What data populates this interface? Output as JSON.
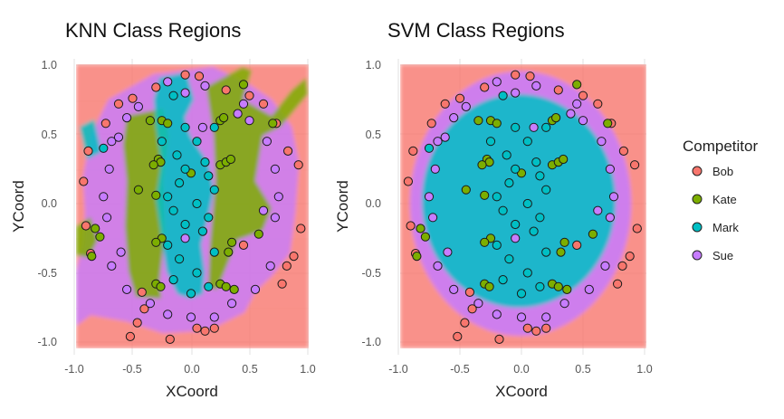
{
  "legend": {
    "title": "Competitor",
    "items": [
      {
        "label": "Bob",
        "color": "#F8766D"
      },
      {
        "label": "Kate",
        "color": "#7CAE00"
      },
      {
        "label": "Mark",
        "color": "#00BFC4"
      },
      {
        "label": "Sue",
        "color": "#C77CFF"
      }
    ]
  },
  "chart_data": [
    {
      "type": "scatter",
      "title": "KNN Class Regions",
      "xlabel": "XCoord",
      "ylabel": "YCoord",
      "xlim": [
        -1.0,
        1.0
      ],
      "ylim": [
        -1.0,
        1.0
      ],
      "xticks": [
        "-1.0",
        "-0.5",
        "0.0",
        "0.5",
        "1.0"
      ],
      "yticks": [
        "-1.0",
        "-0.5",
        "0.0",
        "0.5",
        "1.0"
      ],
      "background": "decision regions",
      "grid": true,
      "regions": [
        {
          "class": "Bob",
          "note": "outer corners"
        },
        {
          "class": "Sue",
          "note": "ring band"
        },
        {
          "class": "Kate",
          "note": "vertical bands"
        },
        {
          "class": "Mark",
          "note": "central column"
        }
      ]
    },
    {
      "type": "scatter",
      "title": "SVM Class Regions",
      "xlabel": "XCoord",
      "ylabel": "YCoord",
      "xlim": [
        -1.0,
        1.0
      ],
      "ylim": [
        -1.0,
        1.0
      ],
      "xticks": [
        "-1.0",
        "-0.5",
        "0.0",
        "0.5",
        "1.0"
      ],
      "yticks": [
        "-1.0",
        "-0.5",
        "0.0",
        "0.5",
        "1.0"
      ],
      "background": "decision regions",
      "grid": true,
      "regions": [
        {
          "class": "Bob",
          "note": "outside"
        },
        {
          "class": "Sue",
          "note": "ring"
        },
        {
          "class": "Mark",
          "note": "inner ellipse"
        }
      ]
    }
  ],
  "points": [
    {
      "x": -0.05,
      "y": 0.93,
      "c": "Bob"
    },
    {
      "x": 0.07,
      "y": 0.92,
      "c": "Bob"
    },
    {
      "x": -0.3,
      "y": 0.84,
      "c": "Bob"
    },
    {
      "x": 0.3,
      "y": 0.82,
      "c": "Bob"
    },
    {
      "x": -0.5,
      "y": 0.76,
      "c": "Bob"
    },
    {
      "x": 0.5,
      "y": 0.78,
      "c": "Bob"
    },
    {
      "x": -0.62,
      "y": 0.72,
      "c": "Bob"
    },
    {
      "x": 0.62,
      "y": 0.72,
      "c": "Bob"
    },
    {
      "x": -0.73,
      "y": 0.58,
      "c": "Bob"
    },
    {
      "x": 0.73,
      "y": 0.58,
      "c": "Bob"
    },
    {
      "x": -0.88,
      "y": 0.38,
      "c": "Bob"
    },
    {
      "x": 0.83,
      "y": 0.38,
      "c": "Bob"
    },
    {
      "x": 0.92,
      "y": 0.28,
      "c": "Bob"
    },
    {
      "x": -0.92,
      "y": 0.16,
      "c": "Bob"
    },
    {
      "x": -0.9,
      "y": -0.16,
      "c": "Bob"
    },
    {
      "x": 0.94,
      "y": -0.18,
      "c": "Bob"
    },
    {
      "x": -0.86,
      "y": -0.36,
      "c": "Bob"
    },
    {
      "x": 0.88,
      "y": -0.38,
      "c": "Bob"
    },
    {
      "x": 0.82,
      "y": -0.45,
      "c": "Bob"
    },
    {
      "x": -0.42,
      "y": -0.64,
      "c": "Bob"
    },
    {
      "x": 0.45,
      "y": -0.3,
      "c": "Bob"
    },
    {
      "x": 0.78,
      "y": -0.58,
      "c": "Bob"
    },
    {
      "x": -0.4,
      "y": -0.76,
      "c": "Bob"
    },
    {
      "x": -0.46,
      "y": -0.86,
      "c": "Bob"
    },
    {
      "x": 0.05,
      "y": -0.9,
      "c": "Bob"
    },
    {
      "x": 0.12,
      "y": -0.92,
      "c": "Bob"
    },
    {
      "x": -0.18,
      "y": -0.98,
      "c": "Bob"
    },
    {
      "x": 0.2,
      "y": -0.9,
      "c": "Bob"
    },
    {
      "x": -0.52,
      "y": -0.96,
      "c": "Bob"
    },
    {
      "x": 0.45,
      "y": 0.86,
      "c": "Kate"
    },
    {
      "x": -0.35,
      "y": 0.6,
      "c": "Kate"
    },
    {
      "x": -0.25,
      "y": 0.6,
      "c": "Kate"
    },
    {
      "x": -0.2,
      "y": 0.58,
      "c": "Kate"
    },
    {
      "x": 0.25,
      "y": 0.6,
      "c": "Kate"
    },
    {
      "x": 0.28,
      "y": 0.62,
      "c": "Kate"
    },
    {
      "x": -0.28,
      "y": 0.32,
      "c": "Kate"
    },
    {
      "x": -0.26,
      "y": 0.3,
      "c": "Kate"
    },
    {
      "x": -0.32,
      "y": 0.28,
      "c": "Kate"
    },
    {
      "x": 0.25,
      "y": 0.28,
      "c": "Kate"
    },
    {
      "x": 0.3,
      "y": 0.3,
      "c": "Kate"
    },
    {
      "x": 0.34,
      "y": 0.32,
      "c": "Kate"
    },
    {
      "x": 0.0,
      "y": 0.22,
      "c": "Kate"
    },
    {
      "x": -0.45,
      "y": 0.1,
      "c": "Kate"
    },
    {
      "x": -0.3,
      "y": 0.06,
      "c": "Kate"
    },
    {
      "x": -0.82,
      "y": -0.18,
      "c": "Kate"
    },
    {
      "x": -0.78,
      "y": -0.24,
      "c": "Kate"
    },
    {
      "x": -0.85,
      "y": -0.38,
      "c": "Kate"
    },
    {
      "x": -0.25,
      "y": -0.25,
      "c": "Kate"
    },
    {
      "x": -0.3,
      "y": -0.28,
      "c": "Kate"
    },
    {
      "x": 0.35,
      "y": -0.28,
      "c": "Kate"
    },
    {
      "x": 0.32,
      "y": -0.35,
      "c": "Kate"
    },
    {
      "x": -0.3,
      "y": -0.58,
      "c": "Kate"
    },
    {
      "x": -0.26,
      "y": -0.6,
      "c": "Kate"
    },
    {
      "x": 0.25,
      "y": -0.58,
      "c": "Kate"
    },
    {
      "x": 0.3,
      "y": -0.6,
      "c": "Kate"
    },
    {
      "x": 0.37,
      "y": -0.62,
      "c": "Kate"
    },
    {
      "x": 0.7,
      "y": 0.58,
      "c": "Kate"
    },
    {
      "x": 0.58,
      "y": -0.22,
      "c": "Kate"
    },
    {
      "x": -0.15,
      "y": 0.78,
      "c": "Mark"
    },
    {
      "x": -0.75,
      "y": 0.4,
      "c": "Mark"
    },
    {
      "x": -0.05,
      "y": 0.55,
      "c": "Mark"
    },
    {
      "x": 0.05,
      "y": 0.45,
      "c": "Mark"
    },
    {
      "x": -0.12,
      "y": 0.35,
      "c": "Mark"
    },
    {
      "x": 0.12,
      "y": 0.3,
      "c": "Mark"
    },
    {
      "x": -0.05,
      "y": 0.25,
      "c": "Mark"
    },
    {
      "x": 0.15,
      "y": 0.2,
      "c": "Mark"
    },
    {
      "x": -0.1,
      "y": 0.15,
      "c": "Mark"
    },
    {
      "x": 0.2,
      "y": 0.1,
      "c": "Mark"
    },
    {
      "x": -0.2,
      "y": 0.05,
      "c": "Mark"
    },
    {
      "x": 0.05,
      "y": 0.0,
      "c": "Mark"
    },
    {
      "x": -0.15,
      "y": -0.05,
      "c": "Mark"
    },
    {
      "x": 0.15,
      "y": -0.1,
      "c": "Mark"
    },
    {
      "x": -0.05,
      "y": -0.15,
      "c": "Mark"
    },
    {
      "x": 0.1,
      "y": -0.2,
      "c": "Mark"
    },
    {
      "x": -0.2,
      "y": -0.3,
      "c": "Mark"
    },
    {
      "x": 0.2,
      "y": -0.35,
      "c": "Mark"
    },
    {
      "x": -0.1,
      "y": -0.4,
      "c": "Mark"
    },
    {
      "x": 0.05,
      "y": -0.5,
      "c": "Mark"
    },
    {
      "x": -0.15,
      "y": -0.55,
      "c": "Mark"
    },
    {
      "x": 0.15,
      "y": -0.6,
      "c": "Mark"
    },
    {
      "x": 0.0,
      "y": -0.65,
      "c": "Mark"
    },
    {
      "x": 0.2,
      "y": 0.55,
      "c": "Mark"
    },
    {
      "x": -0.25,
      "y": 0.45,
      "c": "Mark"
    },
    {
      "x": -0.2,
      "y": 0.88,
      "c": "Sue"
    },
    {
      "x": 0.12,
      "y": 0.85,
      "c": "Sue"
    },
    {
      "x": -0.05,
      "y": 0.8,
      "c": "Sue"
    },
    {
      "x": -0.45,
      "y": 0.7,
      "c": "Sue"
    },
    {
      "x": 0.45,
      "y": 0.72,
      "c": "Sue"
    },
    {
      "x": -0.55,
      "y": 0.62,
      "c": "Sue"
    },
    {
      "x": 0.4,
      "y": 0.65,
      "c": "Sue"
    },
    {
      "x": -0.68,
      "y": 0.45,
      "c": "Sue"
    },
    {
      "x": 0.65,
      "y": 0.45,
      "c": "Sue"
    },
    {
      "x": -0.7,
      "y": 0.25,
      "c": "Sue"
    },
    {
      "x": 0.72,
      "y": 0.25,
      "c": "Sue"
    },
    {
      "x": -0.75,
      "y": 0.05,
      "c": "Sue"
    },
    {
      "x": 0.75,
      "y": 0.05,
      "c": "Sue"
    },
    {
      "x": -0.72,
      "y": -0.1,
      "c": "Sue"
    },
    {
      "x": 0.72,
      "y": -0.1,
      "c": "Sue"
    },
    {
      "x": -0.68,
      "y": -0.45,
      "c": "Sue"
    },
    {
      "x": 0.68,
      "y": -0.45,
      "c": "Sue"
    },
    {
      "x": -0.55,
      "y": -0.62,
      "c": "Sue"
    },
    {
      "x": 0.55,
      "y": -0.62,
      "c": "Sue"
    },
    {
      "x": -0.35,
      "y": -0.72,
      "c": "Sue"
    },
    {
      "x": 0.35,
      "y": -0.72,
      "c": "Sue"
    },
    {
      "x": -0.2,
      "y": -0.8,
      "c": "Sue"
    },
    {
      "x": 0.2,
      "y": -0.82,
      "c": "Sue"
    },
    {
      "x": 0.0,
      "y": -0.82,
      "c": "Sue"
    },
    {
      "x": -0.05,
      "y": -0.25,
      "c": "Sue"
    },
    {
      "x": 0.1,
      "y": 0.55,
      "c": "Sue"
    },
    {
      "x": 0.5,
      "y": 0.6,
      "c": "Sue"
    },
    {
      "x": -0.62,
      "y": 0.48,
      "c": "Sue"
    },
    {
      "x": -0.6,
      "y": -0.35,
      "c": "Sue"
    },
    {
      "x": 0.62,
      "y": -0.05,
      "c": "Sue"
    }
  ]
}
